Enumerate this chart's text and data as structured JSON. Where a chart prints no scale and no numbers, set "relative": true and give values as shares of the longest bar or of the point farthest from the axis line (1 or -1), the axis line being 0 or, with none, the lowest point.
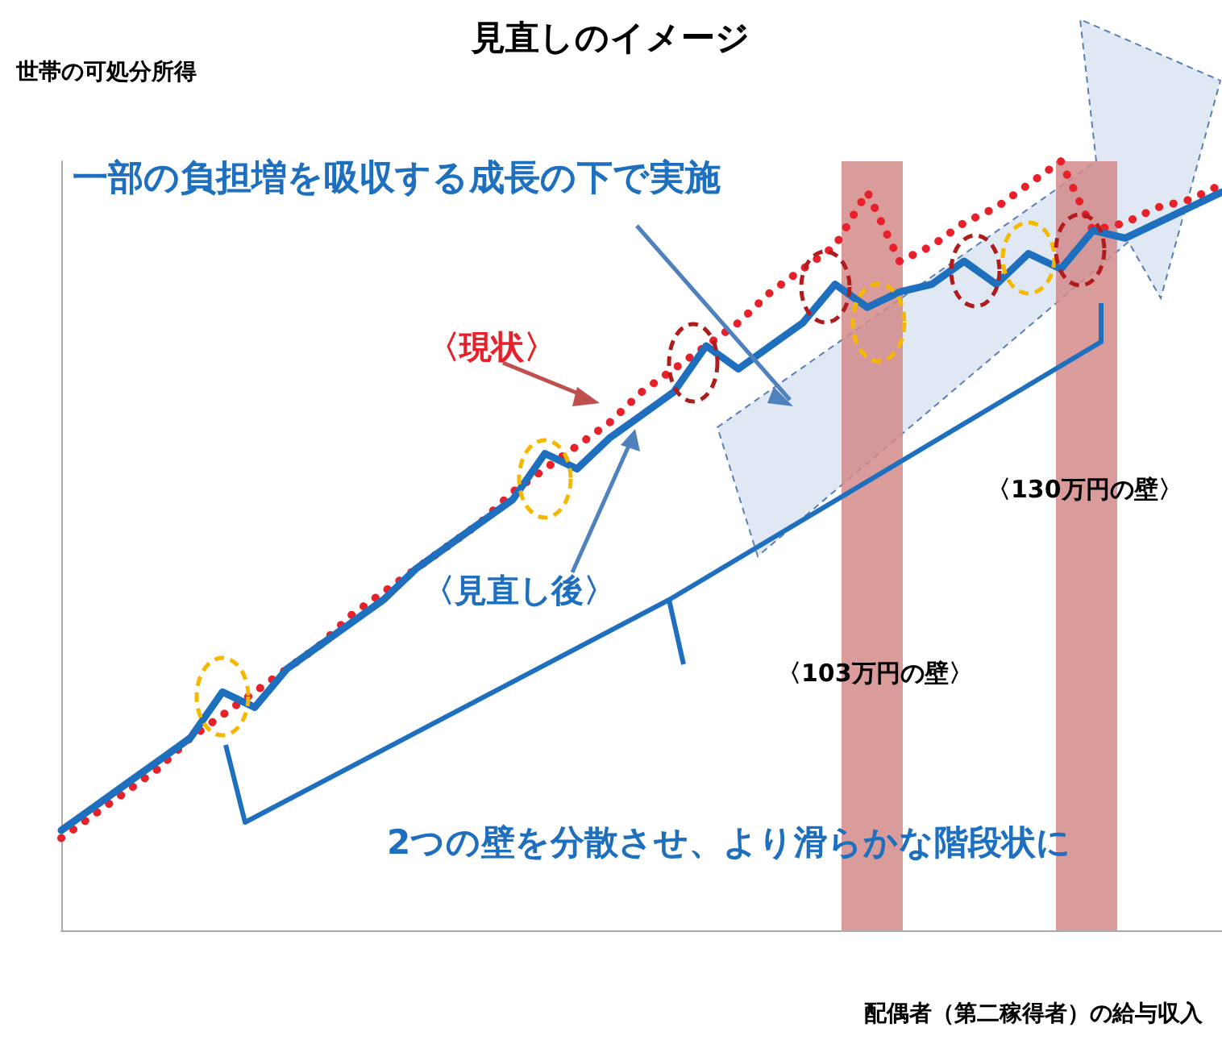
{
  "chart_data": {
    "type": "line",
    "title": "見直しのイメージ",
    "ylabel": "世帯の可処分所得",
    "xlabel": "配偶者（第二稼得者）の給与収入",
    "relative": true,
    "marker": "none",
    "grid": false,
    "legend": false,
    "categories": [
      null,
      null,
      null,
      null,
      null,
      null,
      null,
      null,
      null,
      null,
      null,
      null,
      null,
      null,
      null,
      null,
      null,
      null,
      null,
      null,
      null,
      null,
      null,
      null,
      null,
      null,
      null,
      null,
      null,
      null,
      null,
      null,
      null,
      null,
      null,
      null,
      null
    ],
    "series": [
      {
        "name": "〈現状〉",
        "color": "#e8202a",
        "line_style": "dotted",
        "values": [
          0.12,
          0.15,
          0.18,
          0.21,
          0.25,
          0.28,
          0.31,
          0.34,
          0.37,
          0.41,
          0.44,
          0.47,
          0.5,
          0.53,
          0.57,
          0.6,
          0.63,
          0.66,
          0.7,
          0.73,
          0.76,
          0.79,
          0.83,
          0.86,
          0.89,
          0.96,
          0.87,
          0.89,
          0.92,
          0.94,
          0.97,
          1,
          0.91,
          0.92,
          0.94,
          0.95,
          0.97
        ]
      },
      {
        "name": "〈見直し後〉",
        "color": "#1f6fbf",
        "line_style": "solid",
        "values": [
          0.13,
          0.16,
          0.19,
          0.22,
          0.25,
          0.31,
          0.29,
          0.34,
          0.37,
          0.4,
          0.43,
          0.47,
          0.5,
          0.53,
          0.56,
          0.62,
          0.6,
          0.64,
          0.67,
          0.7,
          0.76,
          0.73,
          0.76,
          0.79,
          0.84,
          0.81,
          0.83,
          0.84,
          0.87,
          0.84,
          0.88,
          0.86,
          0.91,
          0.9,
          0.92,
          0.94,
          0.96
        ]
      }
    ],
    "annotations": [
      "一部の負担増を吸収する成長の下で実施",
      "2つの壁を分散させ、より滑らかな階段状に",
      "〈103万円の壁〉",
      "〈130万円の壁〉"
    ]
  }
}
